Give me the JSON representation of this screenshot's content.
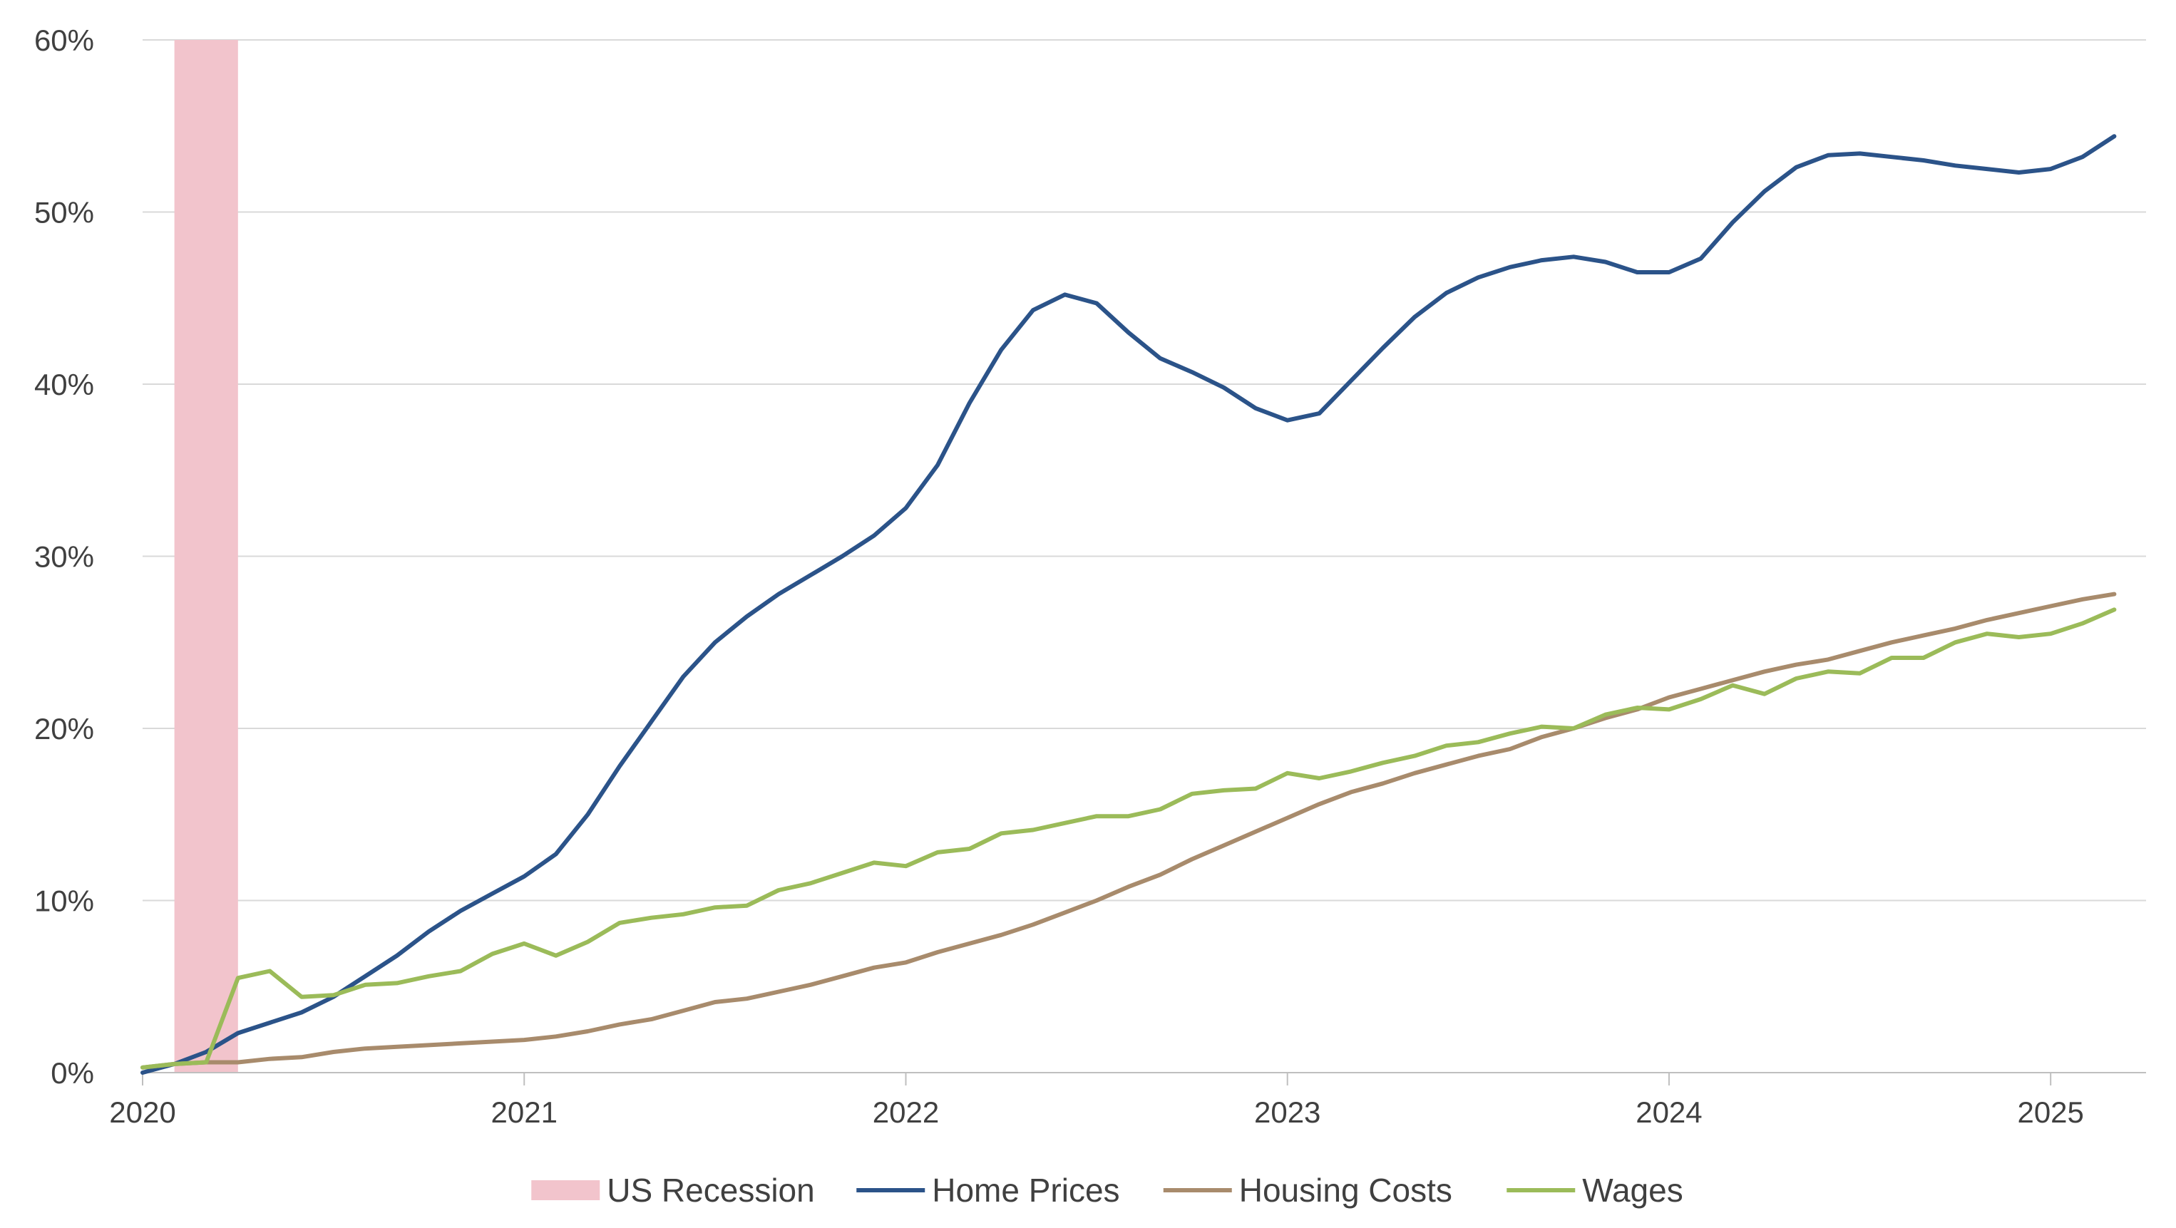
{
  "chart_data": {
    "type": "line",
    "title": "",
    "xlabel": "",
    "ylabel": "",
    "x_start": "2020-01",
    "x_end": "2025-04",
    "x_ticks": [
      "2020",
      "2021",
      "2022",
      "2023",
      "2024",
      "2025"
    ],
    "ylim": [
      0,
      60
    ],
    "y_ticks": [
      "0%",
      "10%",
      "20%",
      "30%",
      "40%",
      "50%",
      "60%"
    ],
    "y_format": "percent",
    "grid": true,
    "legend_position": "bottom",
    "recession": {
      "name": "US Recession",
      "start": "2020-02",
      "end": "2020-04",
      "color": "#f2c4cc"
    },
    "series": [
      {
        "name": "Home Prices",
        "color": "#2b5389",
        "values": [
          {
            "date": "2020-01",
            "value": 0.0
          },
          {
            "date": "2020-02",
            "value": 0.5
          },
          {
            "date": "2020-03",
            "value": 1.2
          },
          {
            "date": "2020-04",
            "value": 2.3
          },
          {
            "date": "2020-05",
            "value": 2.9
          },
          {
            "date": "2020-06",
            "value": 3.5
          },
          {
            "date": "2020-07",
            "value": 4.4
          },
          {
            "date": "2020-08",
            "value": 5.6
          },
          {
            "date": "2020-09",
            "value": 6.8
          },
          {
            "date": "2020-10",
            "value": 8.2
          },
          {
            "date": "2020-11",
            "value": 9.4
          },
          {
            "date": "2020-12",
            "value": 10.4
          },
          {
            "date": "2021-01",
            "value": 11.4
          },
          {
            "date": "2021-02",
            "value": 12.7
          },
          {
            "date": "2021-03",
            "value": 15.0
          },
          {
            "date": "2021-04",
            "value": 17.8
          },
          {
            "date": "2021-05",
            "value": 20.4
          },
          {
            "date": "2021-06",
            "value": 23.0
          },
          {
            "date": "2021-07",
            "value": 25.0
          },
          {
            "date": "2021-08",
            "value": 26.5
          },
          {
            "date": "2021-09",
            "value": 27.8
          },
          {
            "date": "2021-10",
            "value": 28.9
          },
          {
            "date": "2021-11",
            "value": 30.0
          },
          {
            "date": "2021-12",
            "value": 31.2
          },
          {
            "date": "2022-01",
            "value": 32.8
          },
          {
            "date": "2022-02",
            "value": 35.3
          },
          {
            "date": "2022-03",
            "value": 38.9
          },
          {
            "date": "2022-04",
            "value": 42.0
          },
          {
            "date": "2022-05",
            "value": 44.3
          },
          {
            "date": "2022-06",
            "value": 45.2
          },
          {
            "date": "2022-07",
            "value": 44.7
          },
          {
            "date": "2022-08",
            "value": 43.0
          },
          {
            "date": "2022-09",
            "value": 41.5
          },
          {
            "date": "2022-10",
            "value": 40.7
          },
          {
            "date": "2022-11",
            "value": 39.8
          },
          {
            "date": "2022-12",
            "value": 38.6
          },
          {
            "date": "2023-01",
            "value": 37.9
          },
          {
            "date": "2023-02",
            "value": 38.3
          },
          {
            "date": "2023-03",
            "value": 40.2
          },
          {
            "date": "2023-04",
            "value": 42.1
          },
          {
            "date": "2023-05",
            "value": 43.9
          },
          {
            "date": "2023-06",
            "value": 45.3
          },
          {
            "date": "2023-07",
            "value": 46.2
          },
          {
            "date": "2023-08",
            "value": 46.8
          },
          {
            "date": "2023-09",
            "value": 47.2
          },
          {
            "date": "2023-10",
            "value": 47.4
          },
          {
            "date": "2023-11",
            "value": 47.1
          },
          {
            "date": "2023-12",
            "value": 46.5
          },
          {
            "date": "2024-01",
            "value": 46.5
          },
          {
            "date": "2024-02",
            "value": 47.3
          },
          {
            "date": "2024-03",
            "value": 49.4
          },
          {
            "date": "2024-04",
            "value": 51.2
          },
          {
            "date": "2024-05",
            "value": 52.6
          },
          {
            "date": "2024-06",
            "value": 53.3
          },
          {
            "date": "2024-07",
            "value": 53.4
          },
          {
            "date": "2024-08",
            "value": 53.2
          },
          {
            "date": "2024-09",
            "value": 53.0
          },
          {
            "date": "2024-10",
            "value": 52.7
          },
          {
            "date": "2024-11",
            "value": 52.5
          },
          {
            "date": "2024-12",
            "value": 52.3
          },
          {
            "date": "2025-01",
            "value": 52.5
          },
          {
            "date": "2025-02",
            "value": 53.2
          },
          {
            "date": "2025-03",
            "value": 54.4
          }
        ]
      },
      {
        "name": "Housing Costs",
        "color": "#a88b6c",
        "values": [
          {
            "date": "2020-01",
            "value": 0.3
          },
          {
            "date": "2020-02",
            "value": 0.5
          },
          {
            "date": "2020-03",
            "value": 0.6
          },
          {
            "date": "2020-04",
            "value": 0.6
          },
          {
            "date": "2020-05",
            "value": 0.8
          },
          {
            "date": "2020-06",
            "value": 0.9
          },
          {
            "date": "2020-07",
            "value": 1.2
          },
          {
            "date": "2020-08",
            "value": 1.4
          },
          {
            "date": "2020-09",
            "value": 1.5
          },
          {
            "date": "2020-10",
            "value": 1.6
          },
          {
            "date": "2020-11",
            "value": 1.7
          },
          {
            "date": "2020-12",
            "value": 1.8
          },
          {
            "date": "2021-01",
            "value": 1.9
          },
          {
            "date": "2021-02",
            "value": 2.1
          },
          {
            "date": "2021-03",
            "value": 2.4
          },
          {
            "date": "2021-04",
            "value": 2.8
          },
          {
            "date": "2021-05",
            "value": 3.1
          },
          {
            "date": "2021-06",
            "value": 3.6
          },
          {
            "date": "2021-07",
            "value": 4.1
          },
          {
            "date": "2021-08",
            "value": 4.3
          },
          {
            "date": "2021-09",
            "value": 4.7
          },
          {
            "date": "2021-10",
            "value": 5.1
          },
          {
            "date": "2021-11",
            "value": 5.6
          },
          {
            "date": "2021-12",
            "value": 6.1
          },
          {
            "date": "2022-01",
            "value": 6.4
          },
          {
            "date": "2022-02",
            "value": 7.0
          },
          {
            "date": "2022-03",
            "value": 7.5
          },
          {
            "date": "2022-04",
            "value": 8.0
          },
          {
            "date": "2022-05",
            "value": 8.6
          },
          {
            "date": "2022-06",
            "value": 9.3
          },
          {
            "date": "2022-07",
            "value": 10.0
          },
          {
            "date": "2022-08",
            "value": 10.8
          },
          {
            "date": "2022-09",
            "value": 11.5
          },
          {
            "date": "2022-10",
            "value": 12.4
          },
          {
            "date": "2022-11",
            "value": 13.2
          },
          {
            "date": "2022-12",
            "value": 14.0
          },
          {
            "date": "2023-01",
            "value": 14.8
          },
          {
            "date": "2023-02",
            "value": 15.6
          },
          {
            "date": "2023-03",
            "value": 16.3
          },
          {
            "date": "2023-04",
            "value": 16.8
          },
          {
            "date": "2023-05",
            "value": 17.4
          },
          {
            "date": "2023-06",
            "value": 17.9
          },
          {
            "date": "2023-07",
            "value": 18.4
          },
          {
            "date": "2023-08",
            "value": 18.8
          },
          {
            "date": "2023-09",
            "value": 19.5
          },
          {
            "date": "2023-10",
            "value": 20.0
          },
          {
            "date": "2023-11",
            "value": 20.6
          },
          {
            "date": "2023-12",
            "value": 21.1
          },
          {
            "date": "2024-01",
            "value": 21.8
          },
          {
            "date": "2024-02",
            "value": 22.3
          },
          {
            "date": "2024-03",
            "value": 22.8
          },
          {
            "date": "2024-04",
            "value": 23.3
          },
          {
            "date": "2024-05",
            "value": 23.7
          },
          {
            "date": "2024-06",
            "value": 24.0
          },
          {
            "date": "2024-07",
            "value": 24.5
          },
          {
            "date": "2024-08",
            "value": 25.0
          },
          {
            "date": "2024-09",
            "value": 25.4
          },
          {
            "date": "2024-10",
            "value": 25.8
          },
          {
            "date": "2024-11",
            "value": 26.3
          },
          {
            "date": "2024-12",
            "value": 26.7
          },
          {
            "date": "2025-01",
            "value": 27.1
          },
          {
            "date": "2025-02",
            "value": 27.5
          },
          {
            "date": "2025-03",
            "value": 27.8
          }
        ]
      },
      {
        "name": "Wages",
        "color": "#9bbb59",
        "values": [
          {
            "date": "2020-01",
            "value": 0.3
          },
          {
            "date": "2020-02",
            "value": 0.5
          },
          {
            "date": "2020-03",
            "value": 0.6
          },
          {
            "date": "2020-04",
            "value": 5.5
          },
          {
            "date": "2020-05",
            "value": 5.9
          },
          {
            "date": "2020-06",
            "value": 4.4
          },
          {
            "date": "2020-07",
            "value": 4.5
          },
          {
            "date": "2020-08",
            "value": 5.1
          },
          {
            "date": "2020-09",
            "value": 5.2
          },
          {
            "date": "2020-10",
            "value": 5.6
          },
          {
            "date": "2020-11",
            "value": 5.9
          },
          {
            "date": "2020-12",
            "value": 6.9
          },
          {
            "date": "2021-01",
            "value": 7.5
          },
          {
            "date": "2021-02",
            "value": 6.8
          },
          {
            "date": "2021-03",
            "value": 7.6
          },
          {
            "date": "2021-04",
            "value": 8.7
          },
          {
            "date": "2021-05",
            "value": 9.0
          },
          {
            "date": "2021-06",
            "value": 9.2
          },
          {
            "date": "2021-07",
            "value": 9.6
          },
          {
            "date": "2021-08",
            "value": 9.7
          },
          {
            "date": "2021-09",
            "value": 10.6
          },
          {
            "date": "2021-10",
            "value": 11.0
          },
          {
            "date": "2021-11",
            "value": 11.6
          },
          {
            "date": "2021-12",
            "value": 12.2
          },
          {
            "date": "2022-01",
            "value": 12.0
          },
          {
            "date": "2022-02",
            "value": 12.8
          },
          {
            "date": "2022-03",
            "value": 13.0
          },
          {
            "date": "2022-04",
            "value": 13.9
          },
          {
            "date": "2022-05",
            "value": 14.1
          },
          {
            "date": "2022-06",
            "value": 14.5
          },
          {
            "date": "2022-07",
            "value": 14.9
          },
          {
            "date": "2022-08",
            "value": 14.9
          },
          {
            "date": "2022-09",
            "value": 15.3
          },
          {
            "date": "2022-10",
            "value": 16.2
          },
          {
            "date": "2022-11",
            "value": 16.4
          },
          {
            "date": "2022-12",
            "value": 16.5
          },
          {
            "date": "2023-01",
            "value": 17.4
          },
          {
            "date": "2023-02",
            "value": 17.1
          },
          {
            "date": "2023-03",
            "value": 17.5
          },
          {
            "date": "2023-04",
            "value": 18.0
          },
          {
            "date": "2023-05",
            "value": 18.4
          },
          {
            "date": "2023-06",
            "value": 19.0
          },
          {
            "date": "2023-07",
            "value": 19.2
          },
          {
            "date": "2023-08",
            "value": 19.7
          },
          {
            "date": "2023-09",
            "value": 20.1
          },
          {
            "date": "2023-10",
            "value": 20.0
          },
          {
            "date": "2023-11",
            "value": 20.8
          },
          {
            "date": "2023-12",
            "value": 21.2
          },
          {
            "date": "2024-01",
            "value": 21.1
          },
          {
            "date": "2024-02",
            "value": 21.7
          },
          {
            "date": "2024-03",
            "value": 22.5
          },
          {
            "date": "2024-04",
            "value": 22.0
          },
          {
            "date": "2024-05",
            "value": 22.9
          },
          {
            "date": "2024-06",
            "value": 23.3
          },
          {
            "date": "2024-07",
            "value": 23.2
          },
          {
            "date": "2024-08",
            "value": 24.1
          },
          {
            "date": "2024-09",
            "value": 24.1
          },
          {
            "date": "2024-10",
            "value": 25.0
          },
          {
            "date": "2024-11",
            "value": 25.5
          },
          {
            "date": "2024-12",
            "value": 25.3
          },
          {
            "date": "2025-01",
            "value": 25.5
          },
          {
            "date": "2025-02",
            "value": 26.1
          },
          {
            "date": "2025-03",
            "value": 26.9
          }
        ]
      }
    ]
  }
}
